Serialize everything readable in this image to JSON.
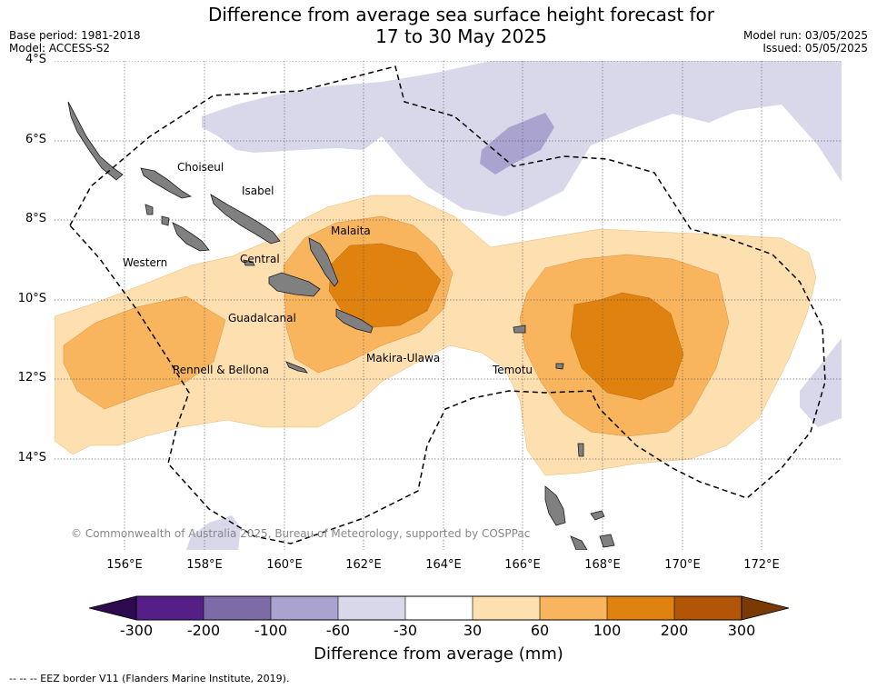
{
  "title": {
    "line1": "Difference from average sea surface height forecast for",
    "line2": "17 to 30 May 2025"
  },
  "meta": {
    "base_period": "Base period: 1981-2018",
    "model": "Model: ACCESS-S2",
    "model_run": "Model run: 03/05/2025",
    "issued": "Issued: 05/05/2025"
  },
  "latitude_labels": [
    "4°S",
    "6°S",
    "8°S",
    "10°S",
    "12°S",
    "14°S"
  ],
  "longitude_labels": [
    "156°E",
    "158°E",
    "160°E",
    "162°E",
    "164°E",
    "166°E",
    "168°E",
    "170°E",
    "172°E"
  ],
  "regions": [
    "Choiseul",
    "Isabel",
    "Malaita",
    "Western",
    "Central",
    "Guadalcanal",
    "Makira-Ulawa",
    "Rennell & Bellona",
    "Temotu"
  ],
  "copyright": "© Commonwealth of Australia 2025, Bureau of Meteorology, supported by COSPPac",
  "colorbar": {
    "tick_labels": [
      "-300",
      "-200",
      "-100",
      "-60",
      "-30",
      "30",
      "60",
      "100",
      "200",
      "300"
    ],
    "colors": [
      "#561f88",
      "#7d6ba8",
      "#aaa3cf",
      "#d8d8ea",
      "#ffffff",
      "#fedfb0",
      "#f8b55d",
      "#e0820f",
      "#b15506"
    ],
    "under_color": "#2d0b4e",
    "over_color": "#7a3a04",
    "title": "Difference from average (mm)"
  },
  "footnote": "--  --  -- EEZ border V11 (Flanders Marine Institute, 2019)."
}
